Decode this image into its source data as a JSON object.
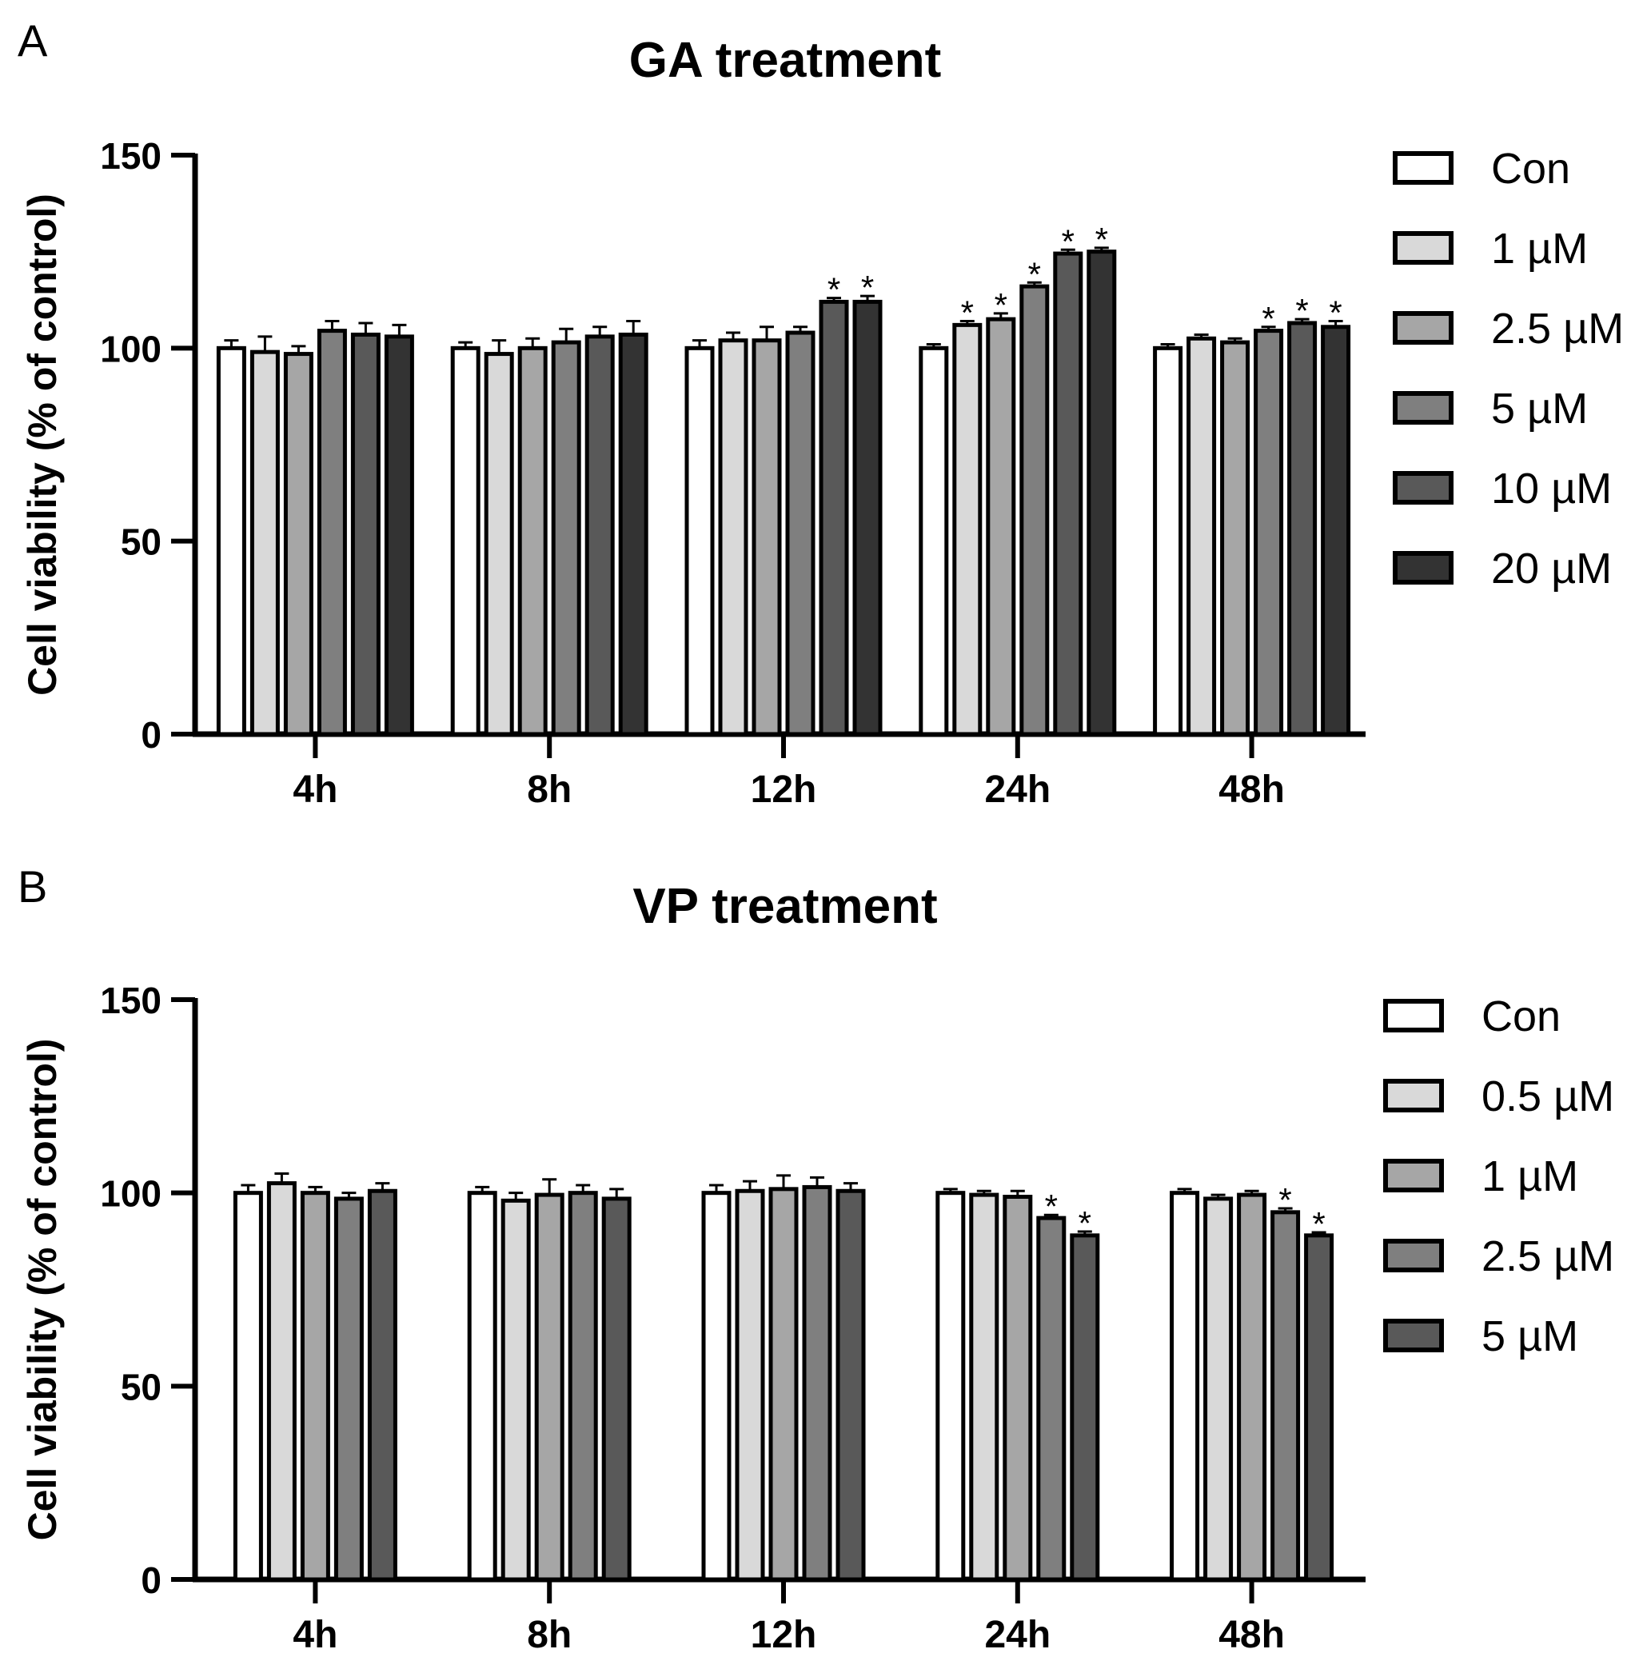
{
  "chart_data": [
    {
      "type": "bar",
      "panel_label": "A",
      "title": "GA treatment",
      "xlabel": "",
      "ylabel": "Cell viability (% of control)",
      "ylim": [
        0,
        150
      ],
      "yticks": [
        0,
        50,
        100,
        150
      ],
      "categories": [
        "4h",
        "8h",
        "12h",
        "24h",
        "48h"
      ],
      "legend_position": "right",
      "series": [
        {
          "name": "Con",
          "color": "#ffffff",
          "values": [
            100,
            100,
            100,
            100,
            100
          ],
          "errors": [
            2,
            1.5,
            2,
            1,
            1
          ],
          "significant": [
            false,
            false,
            false,
            false,
            false
          ]
        },
        {
          "name": "1 µM",
          "color": "#d9d9d9",
          "values": [
            99,
            98.5,
            102,
            106,
            102.5
          ],
          "errors": [
            4,
            3.5,
            2,
            1,
            1
          ],
          "significant": [
            false,
            false,
            false,
            true,
            false
          ]
        },
        {
          "name": "2.5 µM",
          "color": "#a6a6a6",
          "values": [
            98.5,
            100,
            102,
            107.5,
            101.5
          ],
          "errors": [
            2,
            2.5,
            3.5,
            1.5,
            1
          ],
          "significant": [
            false,
            false,
            false,
            true,
            false
          ]
        },
        {
          "name": "5 µM",
          "color": "#7f7f7f",
          "values": [
            104.5,
            101.5,
            104,
            116,
            104.5
          ],
          "errors": [
            2.5,
            3.5,
            1.5,
            1,
            1
          ],
          "significant": [
            false,
            false,
            false,
            true,
            true
          ]
        },
        {
          "name": "10 µM",
          "color": "#595959",
          "values": [
            103.5,
            103,
            112,
            124.5,
            106.5
          ],
          "errors": [
            3,
            2.5,
            1,
            1,
            1
          ],
          "significant": [
            false,
            false,
            true,
            true,
            true
          ]
        },
        {
          "name": "20 µM",
          "color": "#333333",
          "values": [
            103,
            103.5,
            112,
            125,
            105.5
          ],
          "errors": [
            3,
            3.5,
            1.5,
            1,
            1.5
          ],
          "significant": [
            false,
            false,
            true,
            true,
            true
          ]
        }
      ]
    },
    {
      "type": "bar",
      "panel_label": "B",
      "title": "VP treatment",
      "xlabel": "",
      "ylabel": "Cell viability (% of control)",
      "ylim": [
        0,
        150
      ],
      "yticks": [
        0,
        50,
        100,
        150
      ],
      "categories": [
        "4h",
        "8h",
        "12h",
        "24h",
        "48h"
      ],
      "legend_position": "right",
      "series": [
        {
          "name": "Con",
          "color": "#ffffff",
          "values": [
            100,
            100,
            100,
            100,
            100
          ],
          "errors": [
            2,
            1.5,
            2,
            1,
            1
          ],
          "significant": [
            false,
            false,
            false,
            false,
            false
          ]
        },
        {
          "name": "0.5 µM",
          "color": "#d9d9d9",
          "values": [
            102.5,
            98,
            100.5,
            99.5,
            98.5
          ],
          "errors": [
            2.5,
            2,
            2.5,
            1,
            1
          ],
          "significant": [
            false,
            false,
            false,
            false,
            false
          ]
        },
        {
          "name": "1 µM",
          "color": "#a6a6a6",
          "values": [
            100,
            99.5,
            101,
            99,
            99.5
          ],
          "errors": [
            1.5,
            4,
            3.5,
            1.5,
            1
          ],
          "significant": [
            false,
            false,
            false,
            false,
            false
          ]
        },
        {
          "name": "2.5 µM",
          "color": "#7f7f7f",
          "values": [
            98.5,
            100,
            101.5,
            93.5,
            95
          ],
          "errors": [
            1.5,
            2,
            2.5,
            0.8,
            1
          ],
          "significant": [
            false,
            false,
            false,
            true,
            true
          ]
        },
        {
          "name": "5 µM",
          "color": "#595959",
          "values": [
            100.5,
            98.5,
            100.5,
            89,
            89
          ],
          "errors": [
            2,
            2.5,
            2,
            1,
            0.8
          ],
          "significant": [
            false,
            false,
            false,
            true,
            true
          ]
        }
      ]
    }
  ]
}
